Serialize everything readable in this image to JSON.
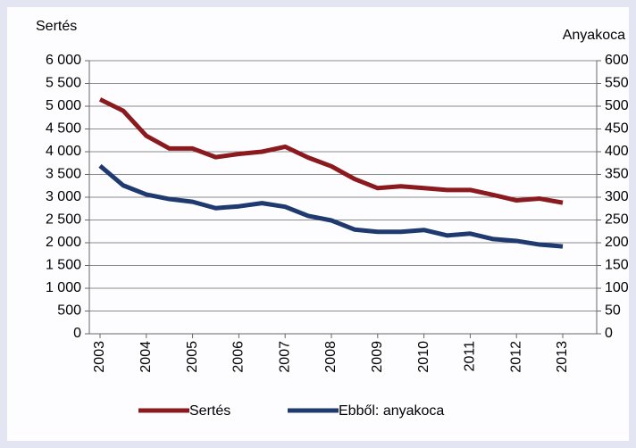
{
  "chart_data": {
    "type": "line",
    "y_title": "Sertés",
    "y2_title": "Anyakoca",
    "categories": [
      "2003",
      null,
      "2004",
      null,
      "2005",
      null,
      "2006",
      null,
      "2007",
      null,
      "2008",
      null,
      "2009",
      null,
      "2010",
      null,
      "2011",
      null,
      "2012",
      null,
      "2013"
    ],
    "series": [
      {
        "name": "Sertés",
        "color": "#8b1a1f",
        "values": [
          5150,
          4900,
          4350,
          4070,
          4070,
          3880,
          3950,
          4000,
          4110,
          3870,
          3680,
          3400,
          3200,
          3240,
          3200,
          3160,
          3160,
          3050,
          2930,
          2970,
          2880
        ]
      },
      {
        "name": "Ebből: anyakoca",
        "color": "#1f3a6e",
        "axis": "y2",
        "values": [
          369,
          326,
          306,
          296,
          290,
          276,
          280,
          287,
          279,
          259,
          249,
          229,
          224,
          224,
          228,
          216,
          220,
          208,
          204,
          196,
          192
        ]
      }
    ],
    "ylim": [
      0,
      6000
    ],
    "yticks": [
      0,
      500,
      {
        "value": 1000,
        "label": "1 000"
      },
      {
        "value": 1500,
        "label": "1 500"
      },
      {
        "value": 2000,
        "label": "2 000"
      },
      {
        "value": 2500,
        "label": "2 500"
      },
      {
        "value": 3000,
        "label": "3 000"
      },
      {
        "value": 3500,
        "label": "3 500"
      },
      {
        "value": 4000,
        "label": "4 000"
      },
      {
        "value": 4500,
        "label": "4 500"
      },
      {
        "value": 5000,
        "label": "5 000"
      },
      {
        "value": 5500,
        "label": "5 500"
      },
      {
        "value": 6000,
        "label": "6 000"
      }
    ],
    "y2lim": [
      0,
      600
    ],
    "y2ticks": [
      0,
      50,
      100,
      150,
      200,
      250,
      300,
      350,
      400,
      450,
      500,
      550,
      600
    ],
    "grid": true,
    "legend": "bottom"
  }
}
